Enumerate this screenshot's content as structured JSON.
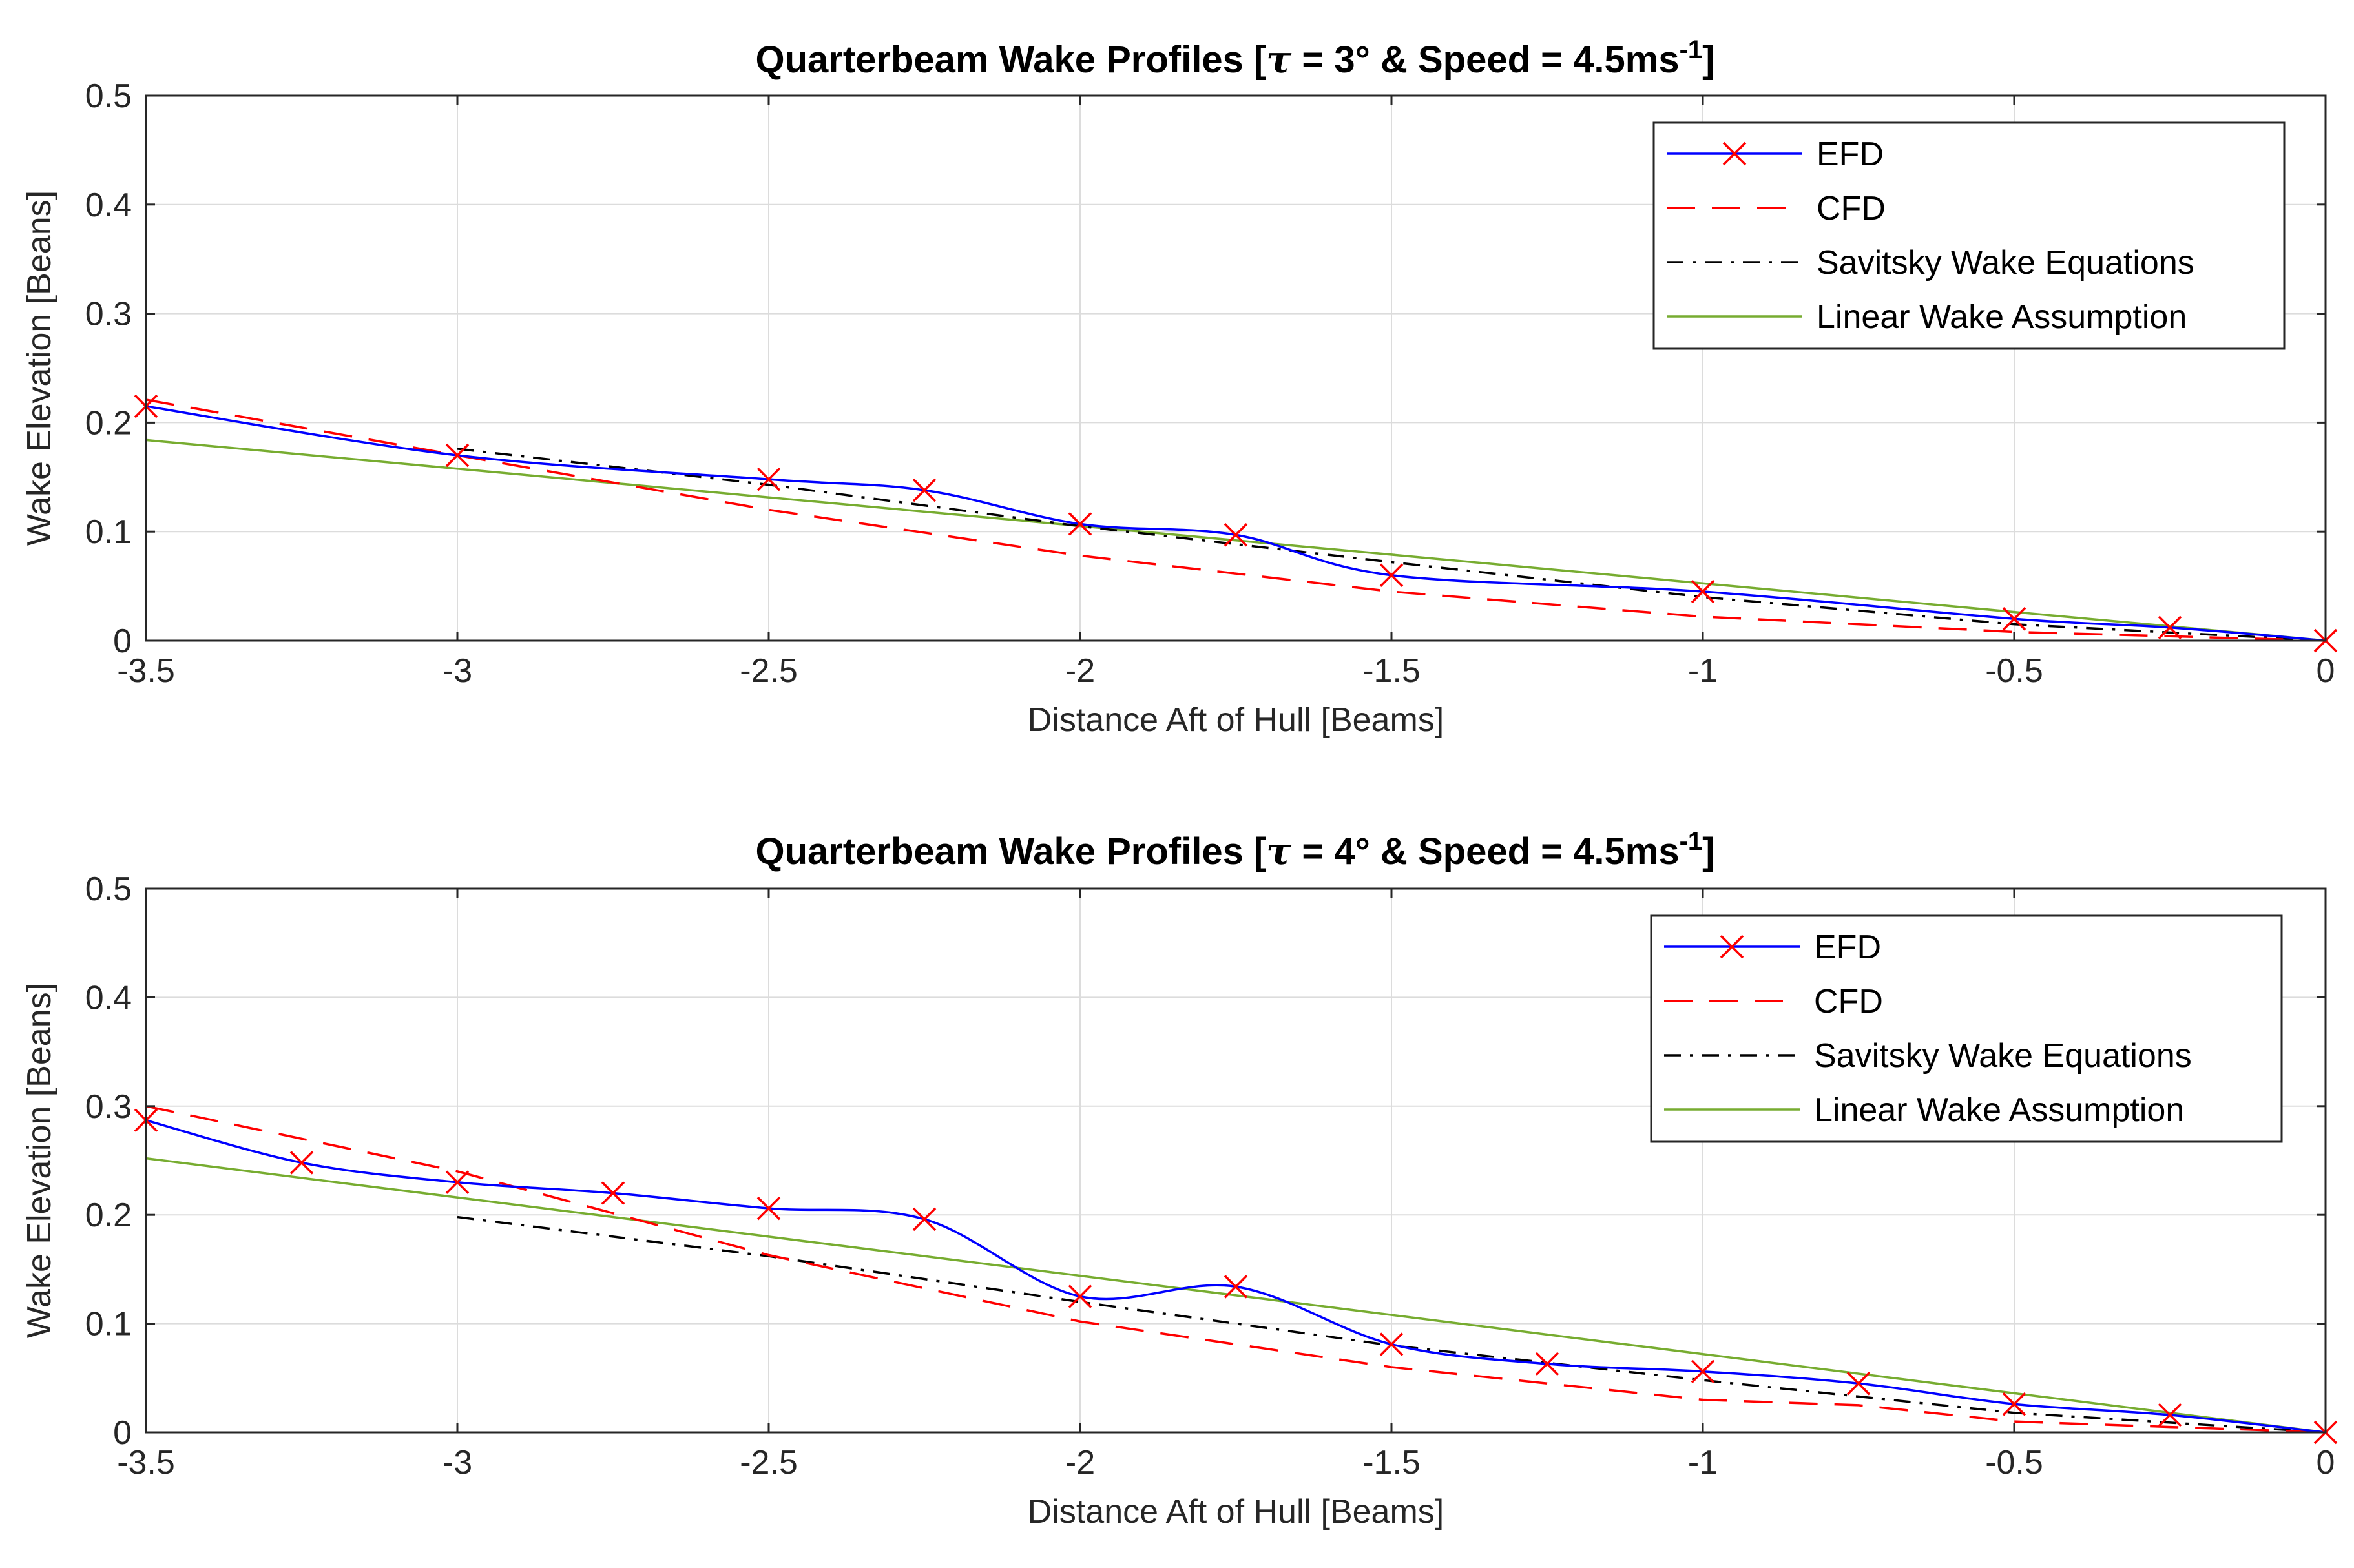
{
  "chart_data": [
    {
      "type": "line",
      "title": "Quarterbeam Wake Profiles [",
      "title_tau": "τ",
      "title_rest": " = 3° & Speed = 4.5ms",
      "title_sup": "-1",
      "title_end": "]",
      "xlabel": "Distance Aft of Hull [Beams]",
      "ylabel": "Wake Elevation [Beans]",
      "xlim": [
        -3.5,
        0
      ],
      "ylim": [
        0,
        0.5
      ],
      "xticks": [
        "-3.5",
        "-3",
        "-2.5",
        "-2",
        "-1.5",
        "-1",
        "-0.5",
        "0"
      ],
      "xtick_values": [
        -3.5,
        -3,
        -2.5,
        -2,
        -1.5,
        -1,
        -0.5,
        0
      ],
      "yticks": [
        "0",
        "0.1",
        "0.2",
        "0.3",
        "0.4",
        "0.5"
      ],
      "ytick_values": [
        0,
        0.1,
        0.2,
        0.3,
        0.4,
        0.5
      ],
      "grid": true,
      "legend_position": "top-right",
      "series": [
        {
          "name": "EFD",
          "color": "#0000ff",
          "style": "solid",
          "marker": "x",
          "marker_color": "#ff0000",
          "x": [
            -3.5,
            -3,
            -2.5,
            -2.25,
            -2,
            -1.75,
            -1.5,
            -1,
            -0.5,
            -0.25,
            0
          ],
          "y": [
            0.215,
            0.17,
            0.148,
            0.138,
            0.107,
            0.097,
            0.06,
            0.045,
            0.02,
            0.012,
            0.0
          ]
        },
        {
          "name": "CFD",
          "color": "#ff0000",
          "style": "dashed",
          "x": [
            -3.5,
            -3,
            -2.5,
            -2,
            -1.5,
            -1,
            -0.5,
            0
          ],
          "y": [
            0.221,
            0.17,
            0.12,
            0.078,
            0.045,
            0.022,
            0.008,
            0.0
          ]
        },
        {
          "name": "Savitsky Wake Equations",
          "color": "#000000",
          "style": "dashdot",
          "x": [
            -3,
            -2.5,
            -2,
            -1.5,
            -1,
            -0.5,
            0
          ],
          "y": [
            0.176,
            0.143,
            0.105,
            0.072,
            0.04,
            0.015,
            0.0
          ]
        },
        {
          "name": "Linear Wake Assumption",
          "color": "#77ac30",
          "style": "solid",
          "x": [
            -3.5,
            0
          ],
          "y": [
            0.184,
            0.0
          ]
        }
      ]
    },
    {
      "type": "line",
      "title": "Quarterbeam Wake Profiles [",
      "title_tau": "τ",
      "title_rest": " = 4° & Speed = 4.5ms",
      "title_sup": "-1",
      "title_end": "]",
      "xlabel": "Distance Aft of Hull [Beams]",
      "ylabel": "Wake Elevation [Beans]",
      "xlim": [
        -3.5,
        0
      ],
      "ylim": [
        0,
        0.5
      ],
      "xticks": [
        "-3.5",
        "-3",
        "-2.5",
        "-2",
        "-1.5",
        "-1",
        "-0.5",
        "0"
      ],
      "xtick_values": [
        -3.5,
        -3,
        -2.5,
        -2,
        -1.5,
        -1,
        -0.5,
        0
      ],
      "yticks": [
        "0",
        "0.1",
        "0.2",
        "0.3",
        "0.4",
        "0.5"
      ],
      "ytick_values": [
        0,
        0.1,
        0.2,
        0.3,
        0.4,
        0.5
      ],
      "grid": true,
      "legend_position": "top-right",
      "series": [
        {
          "name": "EFD",
          "color": "#0000ff",
          "style": "solid",
          "marker": "x",
          "marker_color": "#ff0000",
          "x": [
            -3.5,
            -3.25,
            -3,
            -2.75,
            -2.5,
            -2.25,
            -2,
            -1.75,
            -1.5,
            -1.25,
            -1,
            -0.75,
            -0.5,
            -0.25,
            0
          ],
          "y": [
            0.287,
            0.248,
            0.23,
            0.22,
            0.206,
            0.196,
            0.125,
            0.134,
            0.081,
            0.063,
            0.056,
            0.045,
            0.026,
            0.016,
            0.0
          ]
        },
        {
          "name": "CFD",
          "color": "#ff0000",
          "style": "dashed",
          "x": [
            -3.5,
            -3,
            -2.5,
            -2,
            -1.5,
            -1,
            -0.75,
            -0.5,
            -0.25,
            0
          ],
          "y": [
            0.3,
            0.24,
            0.163,
            0.102,
            0.06,
            0.03,
            0.025,
            0.01,
            0.005,
            0.0
          ]
        },
        {
          "name": "Savitsky Wake Equations",
          "color": "#000000",
          "style": "dashdot",
          "x": [
            -3,
            -2.5,
            -2,
            -1.5,
            -1,
            -0.5,
            0
          ],
          "y": [
            0.198,
            0.162,
            0.12,
            0.08,
            0.048,
            0.018,
            0.0
          ]
        },
        {
          "name": "Linear Wake Assumption",
          "color": "#77ac30",
          "style": "solid",
          "x": [
            -3.5,
            0
          ],
          "y": [
            0.252,
            0.0
          ]
        }
      ]
    }
  ]
}
